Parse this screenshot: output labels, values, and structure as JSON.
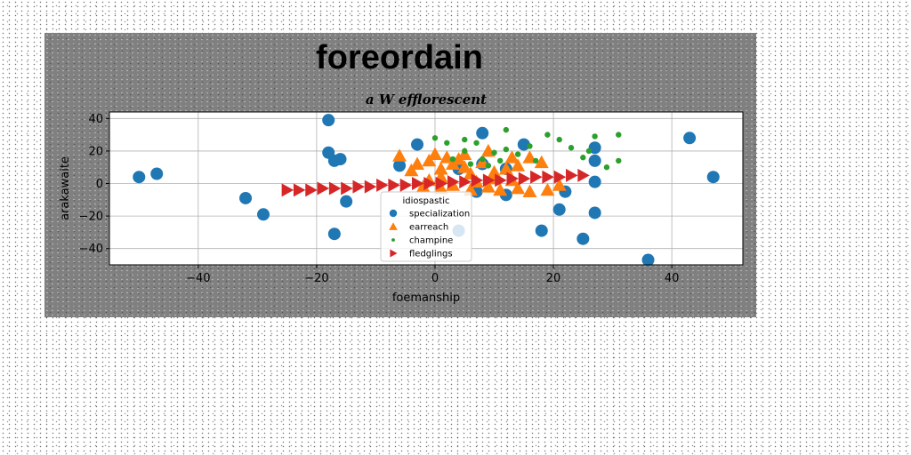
{
  "chart_data": {
    "type": "scatter",
    "title": "foreordain",
    "subtitle": "a W efflorescent",
    "xlabel": "foemanship",
    "ylabel": "arakawaite",
    "xlim": [
      -55,
      52
    ],
    "ylim": [
      -50,
      44
    ],
    "xticks": [
      -40,
      -20,
      0,
      20,
      40
    ],
    "yticks": [
      -40,
      -20,
      0,
      20,
      40
    ],
    "grid": true,
    "legend": {
      "title": "idiospastic",
      "placement": "lower-center"
    },
    "series": [
      {
        "name": "specialization",
        "marker": "circle",
        "color": "#1f77b4",
        "points": [
          [
            -50,
            4
          ],
          [
            -47,
            6
          ],
          [
            -18,
            39
          ],
          [
            -18,
            19
          ],
          [
            -17,
            14
          ],
          [
            -16,
            15
          ],
          [
            -15,
            -11
          ],
          [
            -17,
            -31
          ],
          [
            -32,
            -9
          ],
          [
            -29,
            -19
          ],
          [
            -3,
            24
          ],
          [
            -6,
            11
          ],
          [
            4,
            9
          ],
          [
            8,
            31
          ],
          [
            8,
            12
          ],
          [
            12,
            9
          ],
          [
            15,
            24
          ],
          [
            7,
            -5
          ],
          [
            12,
            -7
          ],
          [
            18,
            -29
          ],
          [
            21,
            -16
          ],
          [
            22,
            -5
          ],
          [
            25,
            -34
          ],
          [
            27,
            22
          ],
          [
            27,
            14
          ],
          [
            27,
            1
          ],
          [
            27,
            -18
          ],
          [
            43,
            28
          ],
          [
            47,
            4
          ],
          [
            36,
            -47
          ],
          [
            4,
            -29
          ]
        ]
      },
      {
        "name": "earreach",
        "marker": "triangle",
        "color": "#ff7f0e",
        "points": [
          [
            -6,
            17
          ],
          [
            -3,
            12
          ],
          [
            -1,
            14
          ],
          [
            0,
            18
          ],
          [
            1,
            9
          ],
          [
            2,
            16
          ],
          [
            3,
            12
          ],
          [
            4,
            15
          ],
          [
            5,
            10
          ],
          [
            5,
            18
          ],
          [
            8,
            13
          ],
          [
            9,
            20
          ],
          [
            10,
            7
          ],
          [
            12,
            9
          ],
          [
            14,
            11
          ],
          [
            16,
            16
          ],
          [
            18,
            13
          ],
          [
            -4,
            8
          ],
          [
            1,
            4
          ],
          [
            6,
            6
          ],
          [
            10,
            3
          ],
          [
            13,
            2
          ],
          [
            -2,
            -2
          ],
          [
            1,
            -3
          ],
          [
            3,
            -1
          ],
          [
            6,
            -4
          ],
          [
            9,
            -2
          ],
          [
            11,
            -4
          ],
          [
            14,
            -3
          ],
          [
            16,
            -5
          ],
          [
            19,
            -4
          ],
          [
            21,
            -1
          ],
          [
            7,
            1
          ],
          [
            -1,
            2
          ],
          [
            13,
            16
          ]
        ]
      },
      {
        "name": "champine",
        "marker": "dot",
        "color": "#2ca02c",
        "points": [
          [
            0,
            28
          ],
          [
            5,
            27
          ],
          [
            12,
            33
          ],
          [
            16,
            23
          ],
          [
            19,
            30
          ],
          [
            21,
            27
          ],
          [
            23,
            22
          ],
          [
            25,
            16
          ],
          [
            26,
            20
          ],
          [
            27,
            29
          ],
          [
            29,
            10
          ],
          [
            31,
            30
          ],
          [
            31,
            14
          ],
          [
            3,
            15
          ],
          [
            5,
            20
          ],
          [
            7,
            25
          ],
          [
            8,
            15
          ],
          [
            10,
            19
          ],
          [
            12,
            21
          ],
          [
            14,
            18
          ],
          [
            2,
            25
          ],
          [
            17,
            14
          ],
          [
            9,
            11
          ],
          [
            6,
            12
          ],
          [
            11,
            14
          ]
        ]
      },
      {
        "name": "fledglings",
        "marker": "triangle-right",
        "color": "#d62728",
        "points": [
          [
            -25,
            -4
          ],
          [
            -23,
            -4
          ],
          [
            -21,
            -4
          ],
          [
            -19,
            -3
          ],
          [
            -17,
            -3
          ],
          [
            -15,
            -3
          ],
          [
            -13,
            -2
          ],
          [
            -11,
            -2
          ],
          [
            -9,
            -1
          ],
          [
            -7,
            -1
          ],
          [
            -5,
            -1
          ],
          [
            -3,
            0
          ],
          [
            -1,
            0
          ],
          [
            1,
            0
          ],
          [
            3,
            1
          ],
          [
            5,
            1
          ],
          [
            7,
            2
          ],
          [
            9,
            2
          ],
          [
            11,
            2
          ],
          [
            13,
            3
          ],
          [
            15,
            3
          ],
          [
            17,
            4
          ],
          [
            19,
            4
          ],
          [
            21,
            4
          ],
          [
            23,
            5
          ],
          [
            25,
            5
          ]
        ]
      }
    ]
  }
}
